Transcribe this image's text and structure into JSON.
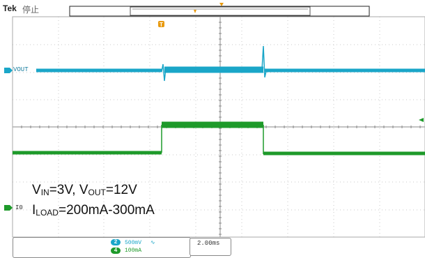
{
  "header": {
    "brand": "Tek",
    "run_state": "停止"
  },
  "channels": {
    "ch2": {
      "label": "VOUT",
      "color": "#1aa6c8",
      "badge": "2",
      "scale": "500mV",
      "coupling": "∿"
    },
    "ch4": {
      "label": "I0",
      "color": "#1e9a2a",
      "badge": "4",
      "scale": "100mA"
    }
  },
  "timebase": {
    "value": "2.00ms"
  },
  "annotation": {
    "line1": {
      "v1": "V",
      "sub1": "IN",
      "mid": "=3V, V",
      "sub2": "OUT",
      "end": "=12V"
    },
    "line2": {
      "v1": "I",
      "sub1": "LOAD",
      "end": "=200mA-300mA"
    }
  },
  "colors": {
    "grid": "#c8c8c8",
    "trigger": "#e89a10",
    "vout": "#1aa6c8",
    "iout": "#1e9a2a"
  }
}
